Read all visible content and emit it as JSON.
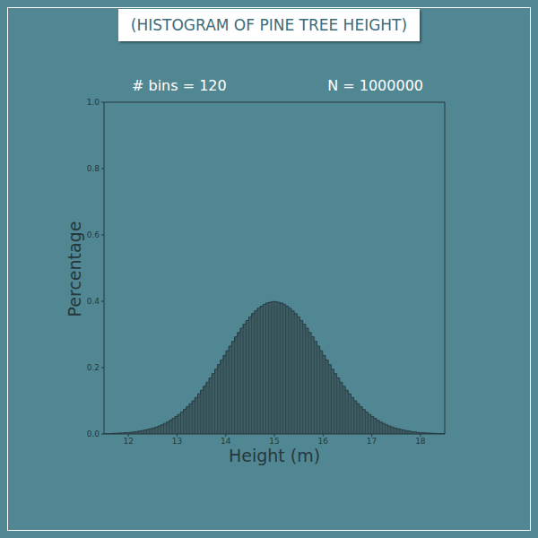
{
  "chart_data": {
    "type": "histogram",
    "title": "(HISTOGRAM OF PINE TREE HEIGHT)",
    "annotations": [
      "# bins = 120",
      "N = 1000000"
    ],
    "x_label": "Height (m)",
    "y_label": "Percentage",
    "color": "#3e5c63",
    "bins": [
      11.5,
      11.5583,
      11.6167,
      11.675,
      11.7333,
      11.7917,
      11.85,
      11.9083,
      11.9667,
      12.025,
      12.0833,
      12.1417,
      12.2,
      12.2583,
      12.3167,
      12.375,
      12.4333,
      12.4917,
      12.55,
      12.6083,
      12.6667,
      12.725,
      12.7833,
      12.8417,
      12.9,
      12.9583,
      13.0167,
      13.075,
      13.1333,
      13.1917,
      13.25,
      13.3083,
      13.3667,
      13.425,
      13.4833,
      13.5417,
      13.6,
      13.6583,
      13.7167,
      13.775,
      13.8333,
      13.8917,
      13.95,
      14.0083,
      14.0667,
      14.125,
      14.1833,
      14.2417,
      14.3,
      14.3583,
      14.4167,
      14.475,
      14.5333,
      14.5917,
      14.65,
      14.7083,
      14.7667,
      14.825,
      14.8833,
      14.9417,
      15,
      15.0583,
      15.1167,
      15.175,
      15.2333,
      15.2917,
      15.35,
      15.4083,
      15.4667,
      15.525,
      15.5833,
      15.6417,
      15.7,
      15.7583,
      15.8167,
      15.875,
      15.9333,
      15.9917,
      16.05,
      16.1083,
      16.1667,
      16.225,
      16.2833,
      16.3417,
      16.4,
      16.4583,
      16.5167,
      16.575,
      16.6333,
      16.6917,
      16.75,
      16.8083,
      16.8667,
      16.925,
      16.9833,
      17.0417,
      17.1,
      17.1583,
      17.2167,
      17.275,
      17.3333,
      17.3917,
      17.45,
      17.5083,
      17.5667,
      17.625,
      17.6833,
      17.7417,
      17.8,
      17.8583,
      17.9167,
      17.975,
      18.0333,
      18.0917,
      18.15,
      18.2083,
      18.2667,
      18.325,
      18.3833,
      18.4417,
      18.5
    ],
    "values": [
      0.001,
      0.001,
      0.001,
      0.002,
      0.002,
      0.003,
      0.003,
      0.004,
      0.004,
      0.005,
      0.006,
      0.007,
      0.009,
      0.01,
      0.012,
      0.014,
      0.016,
      0.018,
      0.021,
      0.024,
      0.028,
      0.032,
      0.036,
      0.041,
      0.047,
      0.053,
      0.059,
      0.066,
      0.074,
      0.082,
      0.091,
      0.1,
      0.11,
      0.121,
      0.132,
      0.144,
      0.156,
      0.169,
      0.182,
      0.195,
      0.209,
      0.223,
      0.237,
      0.251,
      0.265,
      0.279,
      0.293,
      0.306,
      0.319,
      0.331,
      0.342,
      0.353,
      0.363,
      0.371,
      0.379,
      0.385,
      0.391,
      0.395,
      0.397,
      0.399,
      0.399,
      0.397,
      0.395,
      0.391,
      0.385,
      0.379,
      0.371,
      0.363,
      0.353,
      0.342,
      0.331,
      0.319,
      0.306,
      0.293,
      0.279,
      0.265,
      0.251,
      0.237,
      0.223,
      0.209,
      0.195,
      0.182,
      0.169,
      0.156,
      0.144,
      0.132,
      0.121,
      0.11,
      0.1,
      0.091,
      0.082,
      0.074,
      0.066,
      0.059,
      0.053,
      0.047,
      0.041,
      0.036,
      0.032,
      0.028,
      0.024,
      0.021,
      0.018,
      0.016,
      0.014,
      0.012,
      0.01,
      0.009,
      0.007,
      0.006,
      0.005,
      0.004,
      0.004,
      0.003,
      0.003,
      0.002,
      0.002,
      0.001,
      0.001,
      0.001
    ],
    "xlim": [
      11.5,
      18.5
    ],
    "xticks": [
      12,
      13,
      14,
      15,
      16,
      17,
      18
    ],
    "ylim": [
      0,
      1
    ],
    "yticks": [
      {
        "value": 0,
        "label": "0.0"
      },
      0.2,
      0.4,
      0.6,
      0.8,
      {
        "value": 1,
        "label": "1.0"
      }
    ]
  }
}
